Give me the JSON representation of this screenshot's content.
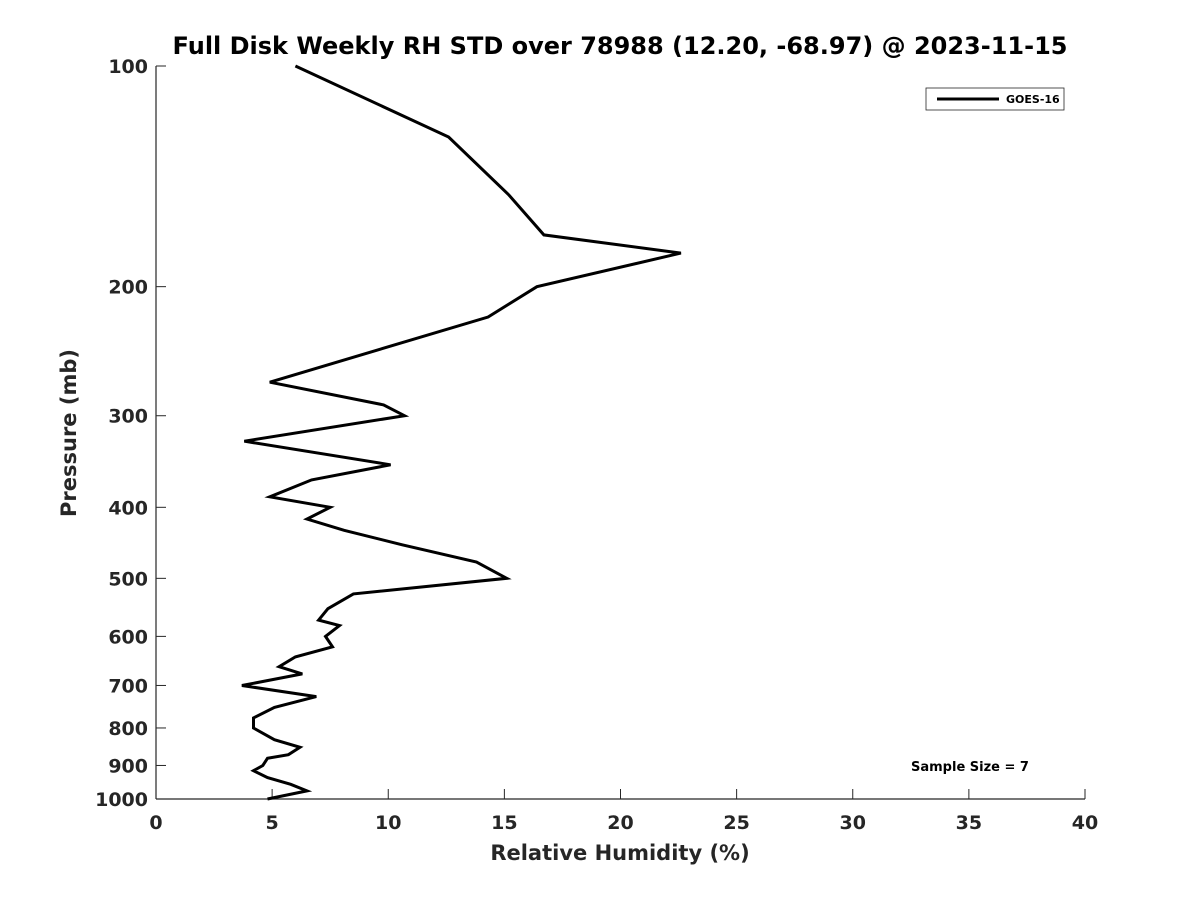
{
  "chart_data": {
    "type": "line",
    "title": "Full Disk Weekly RH STD over 78988 (12.20, -68.97) @ 2023-11-15",
    "xlabel": "Relative Humidity (%)",
    "ylabel": "Pressure (mb)",
    "xlim": [
      0,
      40
    ],
    "ylim": [
      100,
      1000
    ],
    "y_scale": "log",
    "y_inverted": true,
    "grid": false,
    "legend_position": "top-right",
    "x_ticks": [
      "0",
      "5",
      "10",
      "15",
      "20",
      "25",
      "30",
      "35",
      "40"
    ],
    "y_ticks": [
      "100",
      "200",
      "300",
      "400",
      "500",
      "600",
      "700",
      "800",
      "900",
      "1000"
    ],
    "series": [
      {
        "name": "GOES-16",
        "color": "#000000",
        "points": [
          [
            6.0,
            100
          ],
          [
            12.6,
            125
          ],
          [
            15.2,
            150
          ],
          [
            16.7,
            170
          ],
          [
            22.6,
            180
          ],
          [
            16.4,
            200
          ],
          [
            14.3,
            220
          ],
          [
            4.9,
            270
          ],
          [
            9.8,
            290
          ],
          [
            10.7,
            300
          ],
          [
            3.8,
            325
          ],
          [
            10.1,
            350
          ],
          [
            6.7,
            367
          ],
          [
            4.9,
            387
          ],
          [
            7.5,
            400
          ],
          [
            6.5,
            415
          ],
          [
            8.1,
            430
          ],
          [
            10.6,
            450
          ],
          [
            13.8,
            475
          ],
          [
            15.1,
            500
          ],
          [
            8.5,
            525
          ],
          [
            7.4,
            550
          ],
          [
            7.0,
            570
          ],
          [
            7.9,
            580
          ],
          [
            7.3,
            600
          ],
          [
            7.6,
            620
          ],
          [
            6.0,
            640
          ],
          [
            5.3,
            660
          ],
          [
            6.3,
            675
          ],
          [
            3.7,
            700
          ],
          [
            6.9,
            725
          ],
          [
            5.1,
            750
          ],
          [
            4.2,
            775
          ],
          [
            4.2,
            800
          ],
          [
            5.1,
            830
          ],
          [
            6.2,
            850
          ],
          [
            5.7,
            870
          ],
          [
            4.8,
            880
          ],
          [
            4.6,
            900
          ],
          [
            4.2,
            915
          ],
          [
            4.8,
            935
          ],
          [
            5.8,
            955
          ],
          [
            6.5,
            975
          ],
          [
            4.8,
            1000
          ]
        ]
      }
    ],
    "legend": {
      "entries": [
        "GOES-16"
      ]
    },
    "annotation": "Sample Size = 7"
  }
}
